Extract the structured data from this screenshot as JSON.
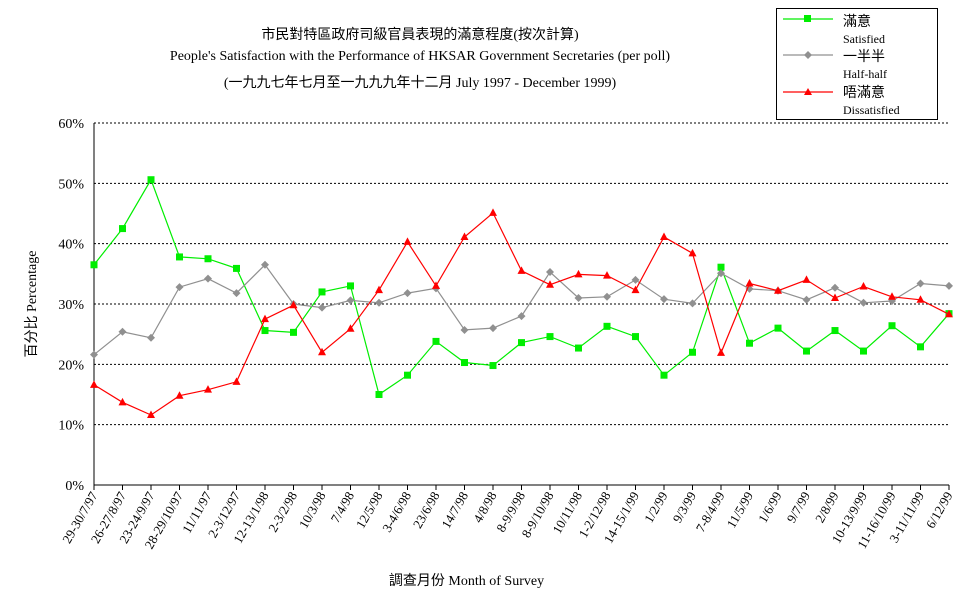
{
  "chart_data": {
    "type": "line",
    "title": "市民對特區政府司級官員表現的滿意程度(按次計算)",
    "subtitle": "People's Satisfaction with the Performance of HKSAR Government Secretaries  (per poll)",
    "subtitle2": "(一九九七年七月至一九九九年十二月 July 1997 -  December 1999)",
    "xlabel": "調查月份 Month of Survey",
    "ylabel": "百分比 Percentage",
    "ylim": [
      0,
      60
    ],
    "yticks": [
      "0%",
      "10%",
      "20%",
      "30%",
      "40%",
      "50%",
      "60%"
    ],
    "grid": "horizontal dashed",
    "legend_position": "top-right",
    "categories": [
      "29-30/7/97",
      "26-27/8/97",
      "23-24/9/97",
      "28-29/10/97",
      "11/11/97",
      "2-3/12/97",
      "12-13/1/98",
      "2-3/2/98",
      "10/3/98",
      "7/4/98",
      "12/5/98",
      "3-4/6/98",
      "23/6/98",
      "14/7/98",
      "4/8/98",
      "8-9/9/98",
      "8-9/10/98",
      "10/11/98",
      "1-2/12/98",
      "14-15/1/99",
      "1/2/99",
      "9/3/99",
      "7-8/4/99",
      "11/5/99",
      "1/6/99",
      "9/7/99",
      "2/8/99",
      "10-13/9/99",
      "11-16/10/99",
      "3-11/11/99",
      "6/12/99"
    ],
    "series": [
      {
        "name": "滿意",
        "name_en": "Satisfied",
        "color": "#00ee00",
        "marker": "square",
        "values": [
          36.5,
          42.5,
          50.6,
          37.8,
          37.5,
          35.9,
          25.6,
          25.3,
          32.0,
          33.0,
          15.0,
          18.2,
          23.8,
          20.3,
          19.8,
          23.6,
          24.6,
          22.7,
          26.3,
          24.6,
          18.2,
          22.0,
          36.1,
          23.5,
          26.0,
          22.2,
          25.6,
          22.2,
          26.4,
          22.9,
          28.4
        ]
      },
      {
        "name": "一半半",
        "name_en": "Half-half",
        "color": "#909090",
        "marker": "diamond",
        "values": [
          21.6,
          25.4,
          24.4,
          32.8,
          34.2,
          31.8,
          36.5,
          30.0,
          29.4,
          30.6,
          30.2,
          31.8,
          32.6,
          25.7,
          26.0,
          28.0,
          35.3,
          31.0,
          31.2,
          34.0,
          30.8,
          30.1,
          35.1,
          32.5,
          32.2,
          30.7,
          32.7,
          30.2,
          30.5,
          33.4,
          33.0
        ]
      },
      {
        "name": "唔滿意",
        "name_en": "Dissatisfied",
        "color": "#ff0000",
        "marker": "triangle",
        "values": [
          16.6,
          13.7,
          11.6,
          14.8,
          15.8,
          17.1,
          27.5,
          29.8,
          22.0,
          25.9,
          32.3,
          40.3,
          33.0,
          41.1,
          45.1,
          35.5,
          33.2,
          34.9,
          34.7,
          32.3,
          41.1,
          38.4,
          21.9,
          33.4,
          32.2,
          34.0,
          31.0,
          32.9,
          31.2,
          30.7,
          28.3
        ]
      }
    ]
  }
}
